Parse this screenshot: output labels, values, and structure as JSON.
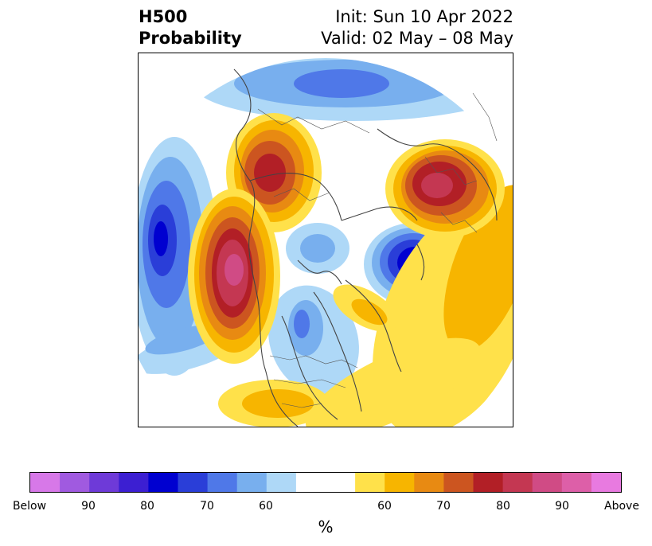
{
  "title": {
    "left_line1": "H500",
    "left_line2": "Probability",
    "right_line1": "Init: Sun 10 Apr 2022",
    "right_line2": "Valid: 02 May – 08 May"
  },
  "map": {
    "projection": "north-polar-stereographic",
    "field": "500 hPa height anomaly probability"
  },
  "colorbar": {
    "label": "%",
    "colors": [
      "#d778e8",
      "#a05ae0",
      "#6e3ad8",
      "#3c1fd2",
      "#0000d0",
      "#2a3ed8",
      "#4f78e8",
      "#78afee",
      "#aed8f7",
      "#ffffff",
      "#ffe14a",
      "#f7b500",
      "#e88a12",
      "#cc5520",
      "#b21f26",
      "#c43752",
      "#d04b85",
      "#dd5fa8",
      "#e87ae0"
    ],
    "ticks": [
      "Below",
      "90",
      "80",
      "70",
      "60",
      "60",
      "70",
      "80",
      "90",
      "Above"
    ]
  }
}
